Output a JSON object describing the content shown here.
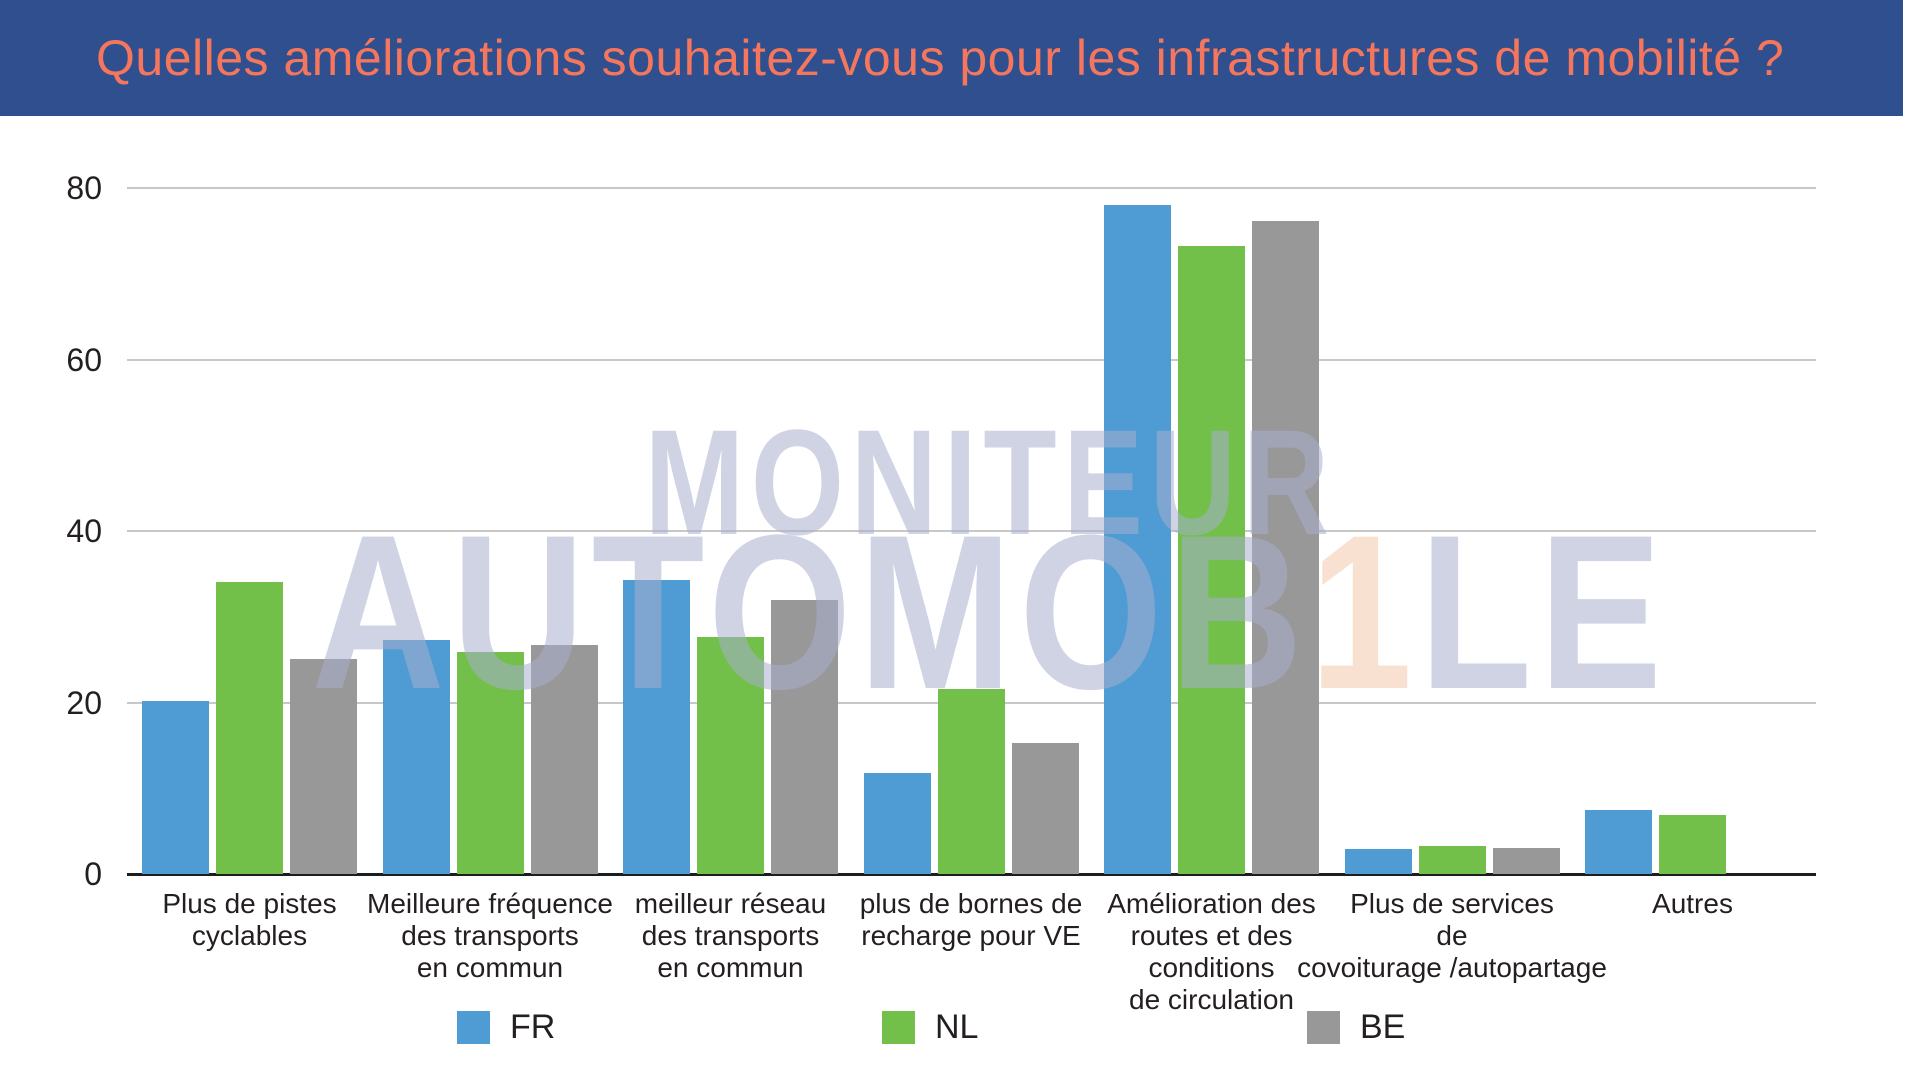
{
  "header": {
    "title": "Quelles améliorations souhaitez-vous pour les infrastructures de mobilité ?"
  },
  "watermark": {
    "line1": "MONITEUR",
    "line2": [
      "AUTOMOB",
      "1",
      "LE"
    ]
  },
  "colors": {
    "header_bg": "#2f4f8e",
    "title_text": "#f4765c",
    "fr_blue": "#4f9bd3",
    "nl_green": "#72bf4a",
    "be_gray": "#989898",
    "gridline": "#c8c8c8",
    "axis": "#1d1d1d",
    "label_text": "#231f20",
    "watermark_lavender": "#d4d8e7",
    "watermark_peach": "#fae5d9"
  },
  "chart_data": {
    "type": "bar",
    "title": "Quelles améliorations souhaitez-vous pour les infrastructures de mobilité ?",
    "xlabel": "",
    "ylabel": "",
    "ylim": [
      0,
      85
    ],
    "yticks": [
      0,
      20,
      40,
      60,
      80
    ],
    "grid": "horizontal",
    "legend_position": "bottom",
    "categories": [
      "Plus de pistes\ncyclables",
      "Meilleure fréquence\ndes transports\nen commun",
      "meilleur réseau\ndes transports\nen commun",
      "plus de bornes de\nrecharge pour VE",
      "Amélioration des\nroutes et des\nconditions\nde circulation",
      "Plus de services\nde\ncovoiturage /autopartage",
      "Autres"
    ],
    "series": [
      {
        "name": "FR",
        "color": "#4f9bd3",
        "values": [
          20.2,
          27.3,
          34.3,
          11.8,
          78.0,
          2.9,
          7.5
        ]
      },
      {
        "name": "NL",
        "color": "#72bf4a",
        "values": [
          34.1,
          25.9,
          27.6,
          21.6,
          73.2,
          3.3,
          6.9
        ]
      },
      {
        "name": "BE",
        "color": "#989898",
        "values": [
          25.1,
          26.7,
          32.0,
          15.3,
          76.2,
          3.0,
          null
        ]
      }
    ]
  }
}
